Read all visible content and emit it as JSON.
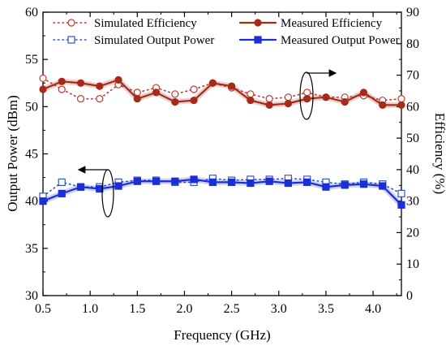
{
  "chart_data": {
    "type": "line",
    "xlabel": "Frequency (GHz)",
    "ylabel_left": "Output Power (dBm)",
    "ylabel_right": "Efficiency (%)",
    "xlim": [
      0.5,
      4.3
    ],
    "ylim_left": [
      30,
      60
    ],
    "ylim_right": [
      0,
      90
    ],
    "x_ticks": [
      0.5,
      1.0,
      1.5,
      2.0,
      2.5,
      3.0,
      3.5,
      4.0
    ],
    "x_tick_labels": [
      "0.5",
      "1.0",
      "1.5",
      "2.0",
      "2.5",
      "3.0",
      "3.5",
      "4.0"
    ],
    "y_left_ticks": [
      30,
      35,
      40,
      45,
      50,
      55,
      60
    ],
    "y_left_tick_labels": [
      "30",
      "35",
      "40",
      "45",
      "50",
      "55",
      "60"
    ],
    "y_right_ticks": [
      0,
      10,
      20,
      30,
      40,
      50,
      60,
      70,
      80,
      90
    ],
    "y_right_tick_labels": [
      "0",
      "10",
      "20",
      "30",
      "40",
      "50",
      "60",
      "70",
      "80",
      "90"
    ],
    "grid": false,
    "legend_position": "top",
    "series": [
      {
        "name": "Simulated Efficiency",
        "axis": "right",
        "style": "dotted-open-circle",
        "color": "#c0392b",
        "x": [
          0.5,
          0.7,
          0.9,
          1.1,
          1.3,
          1.5,
          1.7,
          1.9,
          2.1,
          2.3,
          2.5,
          2.7,
          2.9,
          3.1,
          3.3,
          3.5,
          3.7,
          3.9,
          4.1,
          4.3
        ],
        "values": [
          69,
          65.5,
          62.5,
          62.5,
          67,
          64.5,
          66,
          64,
          65.5,
          67.5,
          66,
          64,
          62.5,
          63,
          64.5,
          63,
          63,
          63.5,
          62,
          62.5
        ]
      },
      {
        "name": "Measured Efficiency",
        "axis": "right",
        "style": "solid-filled-circle",
        "color": "#a52a1a",
        "x": [
          0.5,
          0.7,
          0.9,
          1.1,
          1.3,
          1.5,
          1.7,
          1.9,
          2.1,
          2.3,
          2.5,
          2.7,
          2.9,
          3.1,
          3.3,
          3.5,
          3.7,
          3.9,
          4.1,
          4.3
        ],
        "values": [
          65.5,
          68,
          67.5,
          66.5,
          68.5,
          62.5,
          64.5,
          61.5,
          62,
          67.5,
          66.5,
          62,
          60.5,
          61,
          62.5,
          63,
          61.5,
          64.5,
          60.5,
          60.5
        ]
      },
      {
        "name": "Simulated Output Power",
        "axis": "left",
        "style": "dotted-open-square",
        "color": "#3355cc",
        "x": [
          0.5,
          0.7,
          0.9,
          1.1,
          1.3,
          1.5,
          1.7,
          1.9,
          2.1,
          2.3,
          2.5,
          2.7,
          2.9,
          3.1,
          3.3,
          3.5,
          3.7,
          3.9,
          4.1,
          4.3
        ],
        "values": [
          40.5,
          42,
          41.5,
          41.5,
          42,
          42.2,
          42.2,
          42,
          42,
          42.4,
          42.2,
          42.3,
          42.3,
          42.4,
          42.3,
          42,
          41.8,
          42,
          41.8,
          40.8
        ]
      },
      {
        "name": "Measured Output Power",
        "axis": "left",
        "style": "solid-filled-square",
        "color": "#1a2fd6",
        "x": [
          0.5,
          0.7,
          0.9,
          1.1,
          1.3,
          1.5,
          1.7,
          1.9,
          2.1,
          2.3,
          2.5,
          2.7,
          2.9,
          3.1,
          3.3,
          3.5,
          3.7,
          3.9,
          4.1,
          4.3
        ],
        "values": [
          40,
          40.8,
          41.5,
          41.3,
          41.6,
          42.1,
          42.1,
          42.1,
          42.3,
          42,
          42,
          41.9,
          42.1,
          41.9,
          42,
          41.5,
          41.7,
          41.8,
          41.6,
          39.6
        ]
      }
    ]
  }
}
